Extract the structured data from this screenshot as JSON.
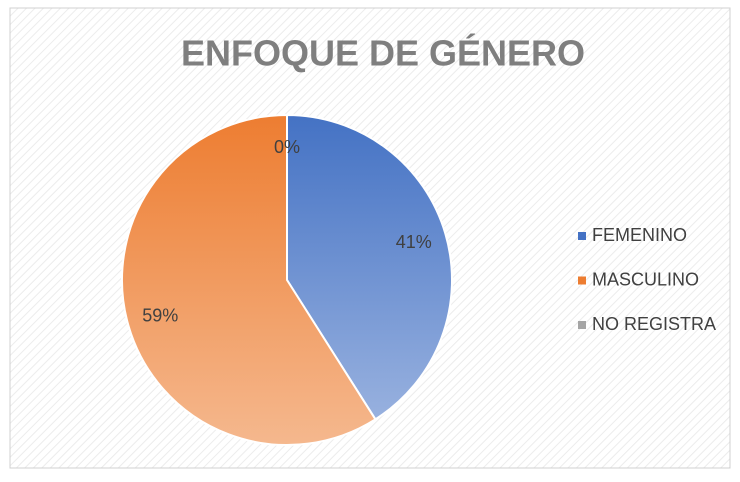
{
  "chart_data": {
    "type": "pie",
    "title": "ENFOQUE DE GÉNERO",
    "categories": [
      "FEMENINO",
      "MASCULINO",
      "NO REGISTRA"
    ],
    "values": [
      41,
      59,
      0
    ],
    "value_labels": [
      "41%",
      "59%",
      "0%"
    ],
    "colors": [
      "#4472c4",
      "#ed7d31",
      "#a5a5a5"
    ],
    "legend": "right"
  }
}
